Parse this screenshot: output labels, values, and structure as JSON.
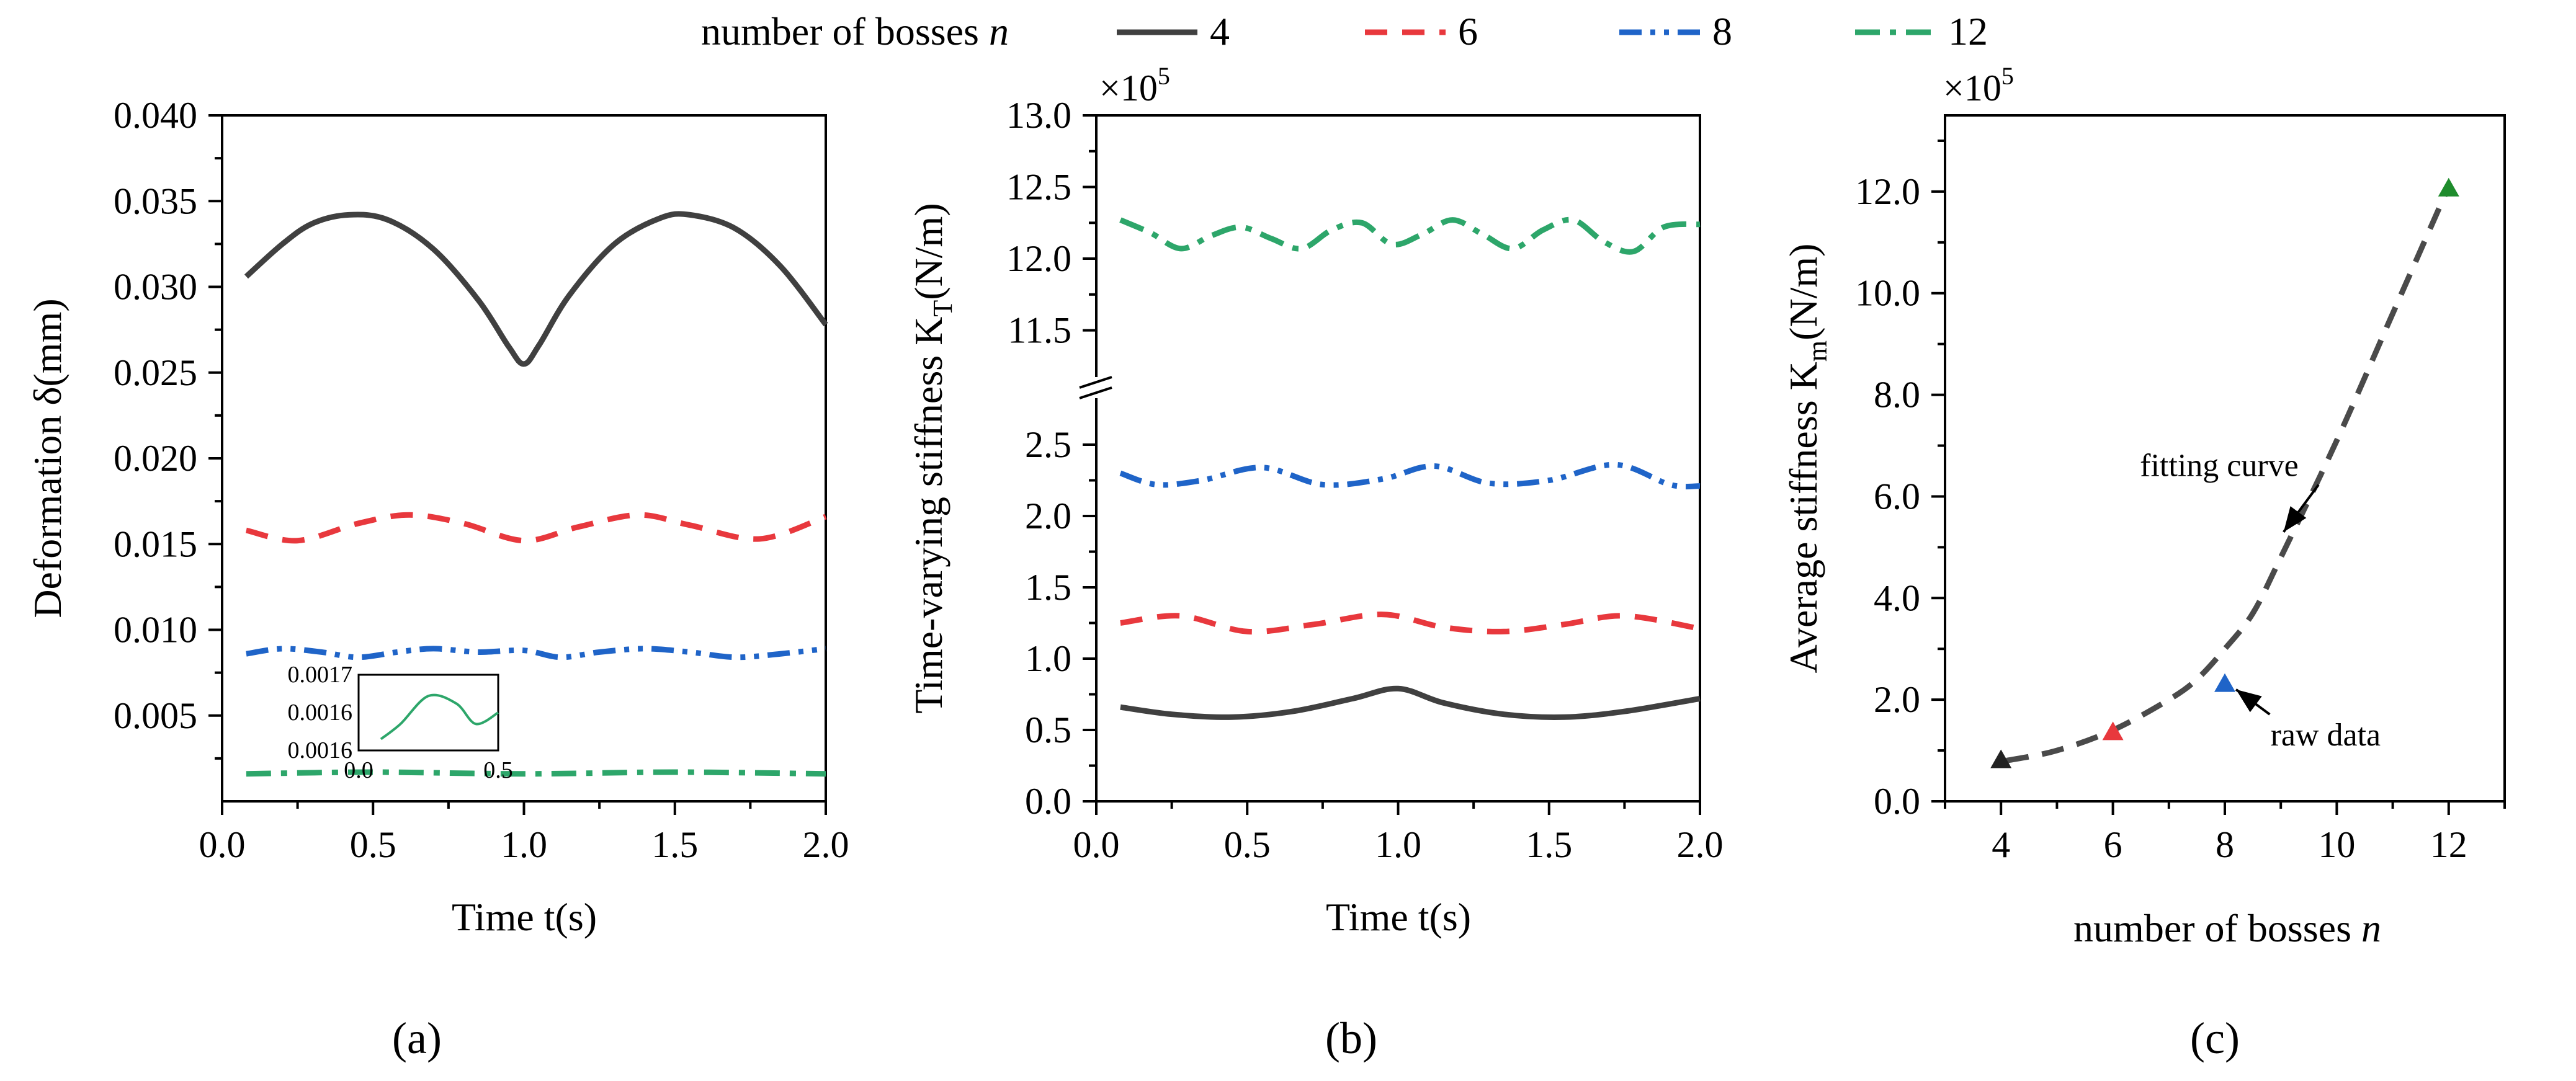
{
  "legend": {
    "title": "number of bosses ",
    "title_italic": "n",
    "entries": [
      {
        "label": "4",
        "color": "#404040",
        "dash": "solid"
      },
      {
        "label": "6",
        "color": "#e8383d",
        "dash": "dash"
      },
      {
        "label": "8",
        "color": "#1f64c8",
        "dash": "dashdotdot"
      },
      {
        "label": "12",
        "color": "#2da66a",
        "dash": "dashdot"
      }
    ]
  },
  "captions": [
    "(a)",
    "(b)",
    "(c)"
  ],
  "chart_data": [
    {
      "type": "line",
      "id": "a",
      "xlabel": "Time t(s)",
      "ylabel": "Deformation δ(mm)",
      "xlim": [
        0,
        2
      ],
      "ylim": [
        0,
        0.04
      ],
      "xticks": [
        "0.0",
        "0.5",
        "1.0",
        "1.5",
        "2.0"
      ],
      "yticks": [
        "0.005",
        "0.010",
        "0.015",
        "0.020",
        "0.025",
        "0.030",
        "0.035",
        "0.040"
      ],
      "series": [
        {
          "name": "4",
          "x": [
            0.08,
            0.2,
            0.3,
            0.42,
            0.55,
            0.7,
            0.85,
            0.95,
            1.0,
            1.05,
            1.15,
            1.3,
            1.45,
            1.55,
            1.7,
            1.85,
            2.0
          ],
          "y": [
            0.0306,
            0.0325,
            0.0337,
            0.0342,
            0.0339,
            0.0322,
            0.0292,
            0.0265,
            0.0255,
            0.0266,
            0.0295,
            0.0325,
            0.034,
            0.0342,
            0.0334,
            0.0312,
            0.0278
          ]
        },
        {
          "name": "6",
          "x": [
            0.08,
            0.25,
            0.45,
            0.62,
            0.8,
            1.0,
            1.18,
            1.38,
            1.55,
            1.78,
            2.0
          ],
          "y": [
            0.0158,
            0.0152,
            0.0162,
            0.0167,
            0.0162,
            0.0152,
            0.016,
            0.0167,
            0.0161,
            0.0153,
            0.0166
          ]
        },
        {
          "name": "8",
          "x": [
            0.08,
            0.2,
            0.33,
            0.45,
            0.58,
            0.7,
            0.85,
            1.0,
            1.12,
            1.25,
            1.4,
            1.55,
            1.7,
            1.85,
            2.0
          ],
          "y": [
            0.0086,
            0.0089,
            0.0087,
            0.0084,
            0.0087,
            0.0089,
            0.0087,
            0.0088,
            0.0084,
            0.0087,
            0.0089,
            0.0087,
            0.0084,
            0.0086,
            0.0089
          ]
        },
        {
          "name": "12",
          "x": [
            0.08,
            0.5,
            1.0,
            1.5,
            2.0
          ],
          "y": [
            0.0016,
            0.0017,
            0.0016,
            0.0017,
            0.0016
          ]
        }
      ],
      "inset": {
        "xticks": [
          "0.0",
          "0.5"
        ],
        "yticks": [
          "0.0017",
          "0.0016",
          "0.0016"
        ],
        "x": [
          0.08,
          0.15,
          0.25,
          0.35,
          0.42,
          0.5
        ],
        "y": [
          0.15,
          0.35,
          0.72,
          0.62,
          0.35,
          0.5
        ]
      }
    },
    {
      "type": "line",
      "id": "b",
      "xlabel": "Time t(s)",
      "ylabel_main": "Time-varying stiffness K",
      "ylabel_sub": "T",
      "ylabel_unit": "(N/m)",
      "multiplier": "×10",
      "multiplier_exp": "5",
      "xlim": [
        0,
        2
      ],
      "ylim_lower": [
        0,
        2.9
      ],
      "ylim_upper": [
        11.1,
        13.0
      ],
      "xticks": [
        "0.0",
        "0.5",
        "1.0",
        "1.5",
        "2.0"
      ],
      "yticks_lower": [
        "0.0",
        "0.5",
        "1.0",
        "1.5",
        "2.0",
        "2.5"
      ],
      "yticks_upper": [
        "11.5",
        "12.0",
        "12.5",
        "13.0"
      ],
      "series": [
        {
          "name": "4",
          "x": [
            0.08,
            0.25,
            0.45,
            0.65,
            0.85,
            1.0,
            1.15,
            1.35,
            1.55,
            1.75,
            2.0
          ],
          "y": [
            0.66,
            0.61,
            0.59,
            0.63,
            0.72,
            0.79,
            0.69,
            0.61,
            0.59,
            0.63,
            0.72
          ]
        },
        {
          "name": "6",
          "x": [
            0.08,
            0.28,
            0.5,
            0.72,
            0.95,
            1.15,
            1.35,
            1.55,
            1.75,
            2.0
          ],
          "y": [
            1.25,
            1.3,
            1.19,
            1.24,
            1.31,
            1.22,
            1.19,
            1.24,
            1.3,
            1.21
          ]
        },
        {
          "name": "8",
          "x": [
            0.08,
            0.2,
            0.35,
            0.55,
            0.75,
            0.95,
            1.12,
            1.3,
            1.5,
            1.72,
            1.9,
            2.0
          ],
          "y": [
            2.3,
            2.22,
            2.25,
            2.34,
            2.22,
            2.26,
            2.35,
            2.23,
            2.25,
            2.36,
            2.22,
            2.21
          ]
        },
        {
          "name": "12",
          "x": [
            0.08,
            0.18,
            0.28,
            0.38,
            0.48,
            0.58,
            0.68,
            0.78,
            0.88,
            0.98,
            1.08,
            1.18,
            1.28,
            1.38,
            1.48,
            1.58,
            1.68,
            1.78,
            1.88,
            2.0
          ],
          "y": [
            12.27,
            12.18,
            12.07,
            12.16,
            12.22,
            12.14,
            12.07,
            12.2,
            12.25,
            12.1,
            12.17,
            12.27,
            12.17,
            12.07,
            12.2,
            12.27,
            12.12,
            12.05,
            12.22,
            12.24
          ]
        }
      ]
    },
    {
      "type": "scatter",
      "id": "c",
      "xlabel": "number of bosses ",
      "xlabel_italic": "n",
      "ylabel_main": "Average stiffness K",
      "ylabel_sub": "m",
      "ylabel_unit": "(N/m)",
      "multiplier": "×10",
      "multiplier_exp": "5",
      "xlim": [
        3,
        13
      ],
      "ylim": [
        0,
        13.5
      ],
      "xticks": [
        "4",
        "6",
        "8",
        "10",
        "12"
      ],
      "xticks_v": [
        4,
        6,
        8,
        10,
        12
      ],
      "yticks": [
        "0.0",
        "2.0",
        "4.0",
        "6.0",
        "8.0",
        "10.0",
        "12.0"
      ],
      "yticks_v": [
        0,
        2,
        4,
        6,
        8,
        10,
        12
      ],
      "points": [
        {
          "x": 4,
          "y": 0.8,
          "color": "#222222"
        },
        {
          "x": 6,
          "y": 1.35,
          "color": "#e8383d"
        },
        {
          "x": 8,
          "y": 2.3,
          "color": "#1f64c8"
        },
        {
          "x": 12,
          "y": 12.05,
          "color": "#1e8c2c"
        }
      ],
      "fit": {
        "x": [
          4.1,
          5,
          6,
          7,
          7.5,
          8,
          8.5,
          9,
          10,
          11,
          12
        ],
        "y": [
          0.8,
          1.0,
          1.4,
          2.0,
          2.4,
          3.0,
          3.7,
          4.8,
          7.1,
          9.6,
          12.1
        ]
      },
      "annotations": [
        {
          "text": "fitting curve",
          "x": 7.9,
          "y": 6.4,
          "ax": 9.05,
          "ay": 5.3
        },
        {
          "text": "raw data",
          "x": 9.8,
          "y": 1.1,
          "ax": 8.2,
          "ay": 2.2
        }
      ]
    }
  ]
}
